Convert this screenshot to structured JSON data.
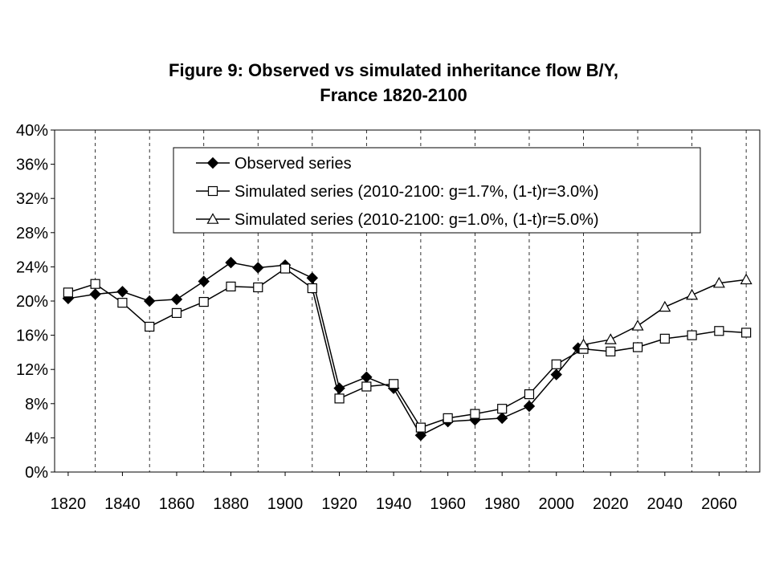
{
  "chart_data": {
    "type": "line",
    "title": "Figure 9: Observed vs simulated inheritance flow B/Y,",
    "subtitle": "France 1820-2100",
    "xlabel": "",
    "ylabel": "",
    "xlim": [
      1820,
      2070
    ],
    "ylim": [
      0,
      40
    ],
    "x_ticks": [
      1820,
      1840,
      1860,
      1880,
      1900,
      1920,
      1940,
      1960,
      1980,
      2000,
      2020,
      2040,
      2060
    ],
    "x_tick_labels": [
      "1820",
      "1840",
      "1860",
      "1880",
      "1900",
      "1920",
      "1940",
      "1960",
      "1980",
      "2000",
      "2020",
      "2040",
      "2060"
    ],
    "y_ticks": [
      0,
      4,
      8,
      12,
      16,
      20,
      24,
      28,
      32,
      36,
      40
    ],
    "y_tick_labels": [
      "0%",
      "4%",
      "8%",
      "12%",
      "16%",
      "20%",
      "24%",
      "28%",
      "32%",
      "36%",
      "40%"
    ],
    "grid": "vertical dashed",
    "legend_position": "top-center",
    "series": [
      {
        "name": "Observed series",
        "marker": "diamond",
        "x": [
          1820,
          1830,
          1840,
          1850,
          1860,
          1870,
          1880,
          1890,
          1900,
          1910,
          1920,
          1930,
          1940,
          1950,
          1960,
          1970,
          1980,
          1990,
          2000,
          2008
        ],
        "values": [
          20.3,
          20.8,
          21.1,
          20.0,
          20.2,
          22.3,
          24.5,
          23.9,
          24.2,
          22.7,
          9.8,
          11.1,
          9.8,
          4.3,
          5.9,
          6.1,
          6.3,
          7.7,
          11.4,
          14.5
        ]
      },
      {
        "name": "Simulated series (2010-2100: g=1.7%, (1-t)r=3.0%)",
        "marker": "square",
        "x": [
          1820,
          1830,
          1840,
          1850,
          1860,
          1870,
          1880,
          1890,
          1900,
          1910,
          1920,
          1930,
          1940,
          1950,
          1960,
          1970,
          1980,
          1990,
          2000,
          2010,
          2020,
          2030,
          2040,
          2050,
          2060,
          2070
        ],
        "values": [
          21.0,
          22.0,
          19.8,
          17.0,
          18.6,
          19.9,
          21.7,
          21.6,
          23.8,
          21.5,
          8.6,
          10.0,
          10.3,
          5.2,
          6.3,
          6.8,
          7.4,
          9.1,
          12.6,
          14.4,
          14.1,
          14.6,
          15.6,
          16.0,
          16.5,
          16.3
        ]
      },
      {
        "name": "Simulated series (2010-2100: g=1.0%, (1-t)r=5.0%)",
        "marker": "triangle",
        "x": [
          2010,
          2020,
          2030,
          2040,
          2050,
          2060,
          2070
        ],
        "values": [
          14.9,
          15.5,
          17.1,
          19.3,
          20.7,
          22.1,
          22.5
        ]
      }
    ]
  }
}
